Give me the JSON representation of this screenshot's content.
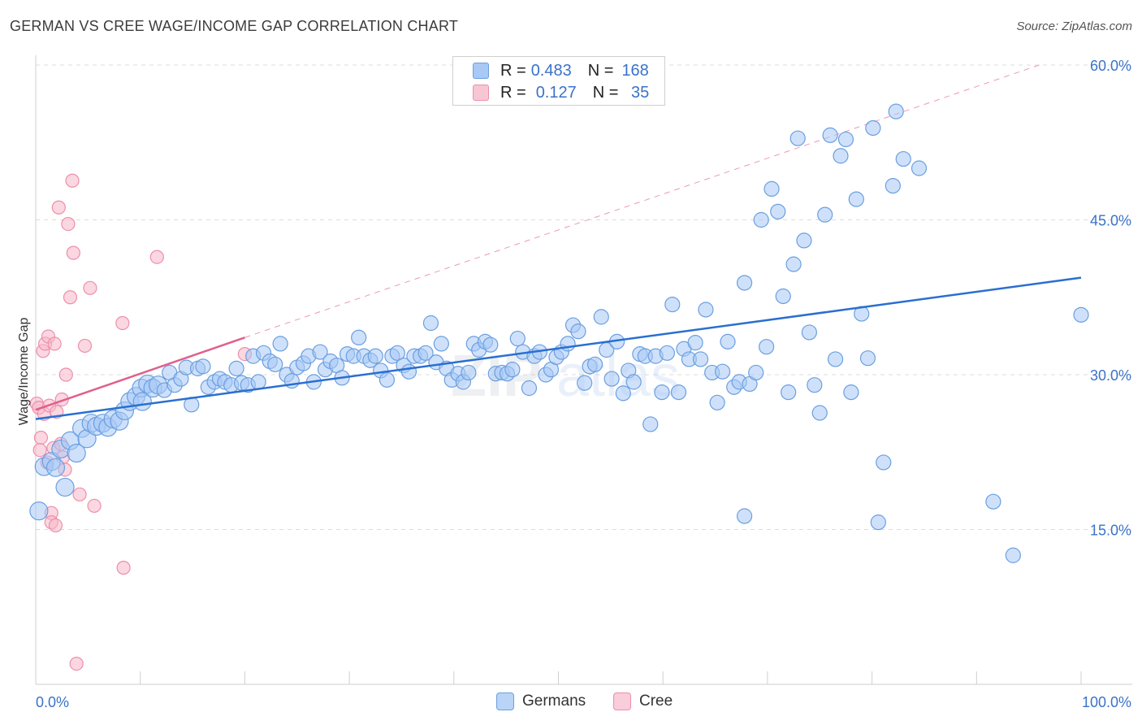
{
  "title": "GERMAN VS CREE WAGE/INCOME GAP CORRELATION CHART",
  "source": "Source: ZipAtlas.com",
  "legend_top": {
    "rows": [
      {
        "r_label": "R =",
        "r_value": "0.483",
        "n_label": "N =",
        "n_value": "168",
        "color": "#a8c8f5"
      },
      {
        "r_label": "R =",
        "r_value": "0.127",
        "n_label": "N =",
        "n_value": " 35",
        "color": "#f7b6c8"
      }
    ]
  },
  "legend_bottom": [
    {
      "label": "Germans",
      "color": "#a8c8f5"
    },
    {
      "label": "Cree",
      "color": "#f7b6c8"
    }
  ],
  "chart_data": {
    "type": "scatter",
    "title": "GERMAN VS CREE WAGE/INCOME GAP CORRELATION CHART",
    "xlabel": "",
    "ylabel": "Wage/Income Gap",
    "xlim": [
      0,
      100
    ],
    "ylim": [
      0,
      60
    ],
    "x_tick_labels": [
      "0.0%",
      "100.0%"
    ],
    "y_ticks": [
      15,
      30,
      45,
      60
    ],
    "y_tick_labels": [
      "15.0%",
      "30.0%",
      "45.0%",
      "60.0%"
    ],
    "grid": true,
    "legend_position": "top-center",
    "colors": {
      "germans_fill": "#a8c8f5",
      "germans_stroke": "#6a9fe0",
      "germans_line": "#2a6fd0",
      "cree_fill": "#f7b6c8",
      "cree_stroke": "#ec8fab",
      "cree_line": "#e0608a",
      "axis_label": "#3a73c9"
    },
    "series": [
      {
        "name": "Germans",
        "r": 0.483,
        "n": 168,
        "trend": {
          "x": [
            0,
            100
          ],
          "y": [
            25.7,
            39.4
          ]
        },
        "points": [
          [
            0.3,
            16.8
          ],
          [
            0.8,
            21.1
          ],
          [
            1.5,
            21.6
          ],
          [
            1.9,
            21.0
          ],
          [
            2.4,
            22.8
          ],
          [
            2.8,
            19.1
          ],
          [
            3.3,
            23.6
          ],
          [
            3.9,
            22.4
          ],
          [
            4.4,
            24.8
          ],
          [
            4.9,
            23.8
          ],
          [
            5.3,
            25.3
          ],
          [
            5.8,
            25.0
          ],
          [
            6.4,
            25.3
          ],
          [
            6.9,
            24.9
          ],
          [
            7.4,
            25.7
          ],
          [
            8.0,
            25.5
          ],
          [
            8.5,
            26.5
          ],
          [
            9.0,
            27.4
          ],
          [
            9.6,
            27.9
          ],
          [
            10.1,
            28.7
          ],
          [
            10.2,
            27.4
          ],
          [
            10.7,
            29.1
          ],
          [
            11.2,
            28.7
          ],
          [
            11.7,
            29.0
          ],
          [
            12.3,
            28.5
          ],
          [
            12.8,
            30.2
          ],
          [
            13.3,
            29.0
          ],
          [
            13.9,
            29.6
          ],
          [
            14.4,
            30.7
          ],
          [
            14.9,
            27.1
          ],
          [
            15.5,
            30.6
          ],
          [
            16.0,
            30.8
          ],
          [
            16.5,
            28.8
          ],
          [
            17.1,
            29.3
          ],
          [
            17.6,
            29.6
          ],
          [
            18.1,
            29.3
          ],
          [
            18.7,
            29.0
          ],
          [
            19.2,
            30.6
          ],
          [
            19.7,
            29.2
          ],
          [
            20.3,
            29.0
          ],
          [
            20.8,
            31.8
          ],
          [
            21.3,
            29.3
          ],
          [
            21.8,
            32.1
          ],
          [
            22.4,
            31.3
          ],
          [
            22.9,
            31.0
          ],
          [
            23.4,
            33.0
          ],
          [
            24.0,
            30.0
          ],
          [
            24.5,
            29.4
          ],
          [
            25.0,
            30.7
          ],
          [
            25.6,
            31.1
          ],
          [
            26.1,
            31.8
          ],
          [
            26.6,
            29.3
          ],
          [
            27.2,
            32.2
          ],
          [
            27.7,
            30.5
          ],
          [
            28.2,
            31.3
          ],
          [
            28.8,
            30.9
          ],
          [
            29.3,
            29.7
          ],
          [
            29.8,
            32.0
          ],
          [
            30.4,
            31.8
          ],
          [
            30.9,
            33.6
          ],
          [
            31.4,
            31.8
          ],
          [
            32.0,
            31.4
          ],
          [
            32.5,
            31.8
          ],
          [
            33.0,
            30.4
          ],
          [
            33.6,
            29.5
          ],
          [
            34.1,
            31.8
          ],
          [
            34.6,
            32.1
          ],
          [
            35.2,
            30.9
          ],
          [
            35.7,
            30.3
          ],
          [
            36.2,
            31.8
          ],
          [
            36.8,
            31.8
          ],
          [
            37.3,
            32.1
          ],
          [
            37.8,
            35.0
          ],
          [
            38.3,
            31.2
          ],
          [
            38.8,
            33.0
          ],
          [
            39.3,
            30.6
          ],
          [
            39.8,
            29.5
          ],
          [
            40.4,
            30.1
          ],
          [
            40.9,
            29.3
          ],
          [
            41.4,
            30.2
          ],
          [
            41.9,
            33.0
          ],
          [
            42.4,
            32.4
          ],
          [
            43.0,
            33.2
          ],
          [
            43.5,
            32.9
          ],
          [
            44.0,
            30.1
          ],
          [
            44.6,
            30.2
          ],
          [
            45.1,
            30.1
          ],
          [
            45.6,
            30.5
          ],
          [
            46.1,
            33.5
          ],
          [
            46.6,
            32.2
          ],
          [
            47.2,
            28.7
          ],
          [
            47.7,
            31.8
          ],
          [
            48.2,
            32.2
          ],
          [
            48.8,
            30.0
          ],
          [
            49.3,
            30.5
          ],
          [
            49.8,
            31.7
          ],
          [
            50.3,
            32.2
          ],
          [
            50.9,
            33.0
          ],
          [
            51.4,
            34.8
          ],
          [
            51.9,
            34.2
          ],
          [
            52.5,
            29.2
          ],
          [
            53.0,
            30.8
          ],
          [
            53.5,
            31.0
          ],
          [
            54.1,
            35.6
          ],
          [
            54.6,
            32.4
          ],
          [
            55.1,
            29.6
          ],
          [
            55.6,
            33.2
          ],
          [
            56.2,
            28.2
          ],
          [
            56.7,
            30.4
          ],
          [
            57.2,
            29.3
          ],
          [
            57.8,
            32.0
          ],
          [
            58.3,
            31.8
          ],
          [
            58.8,
            25.2
          ],
          [
            59.3,
            31.8
          ],
          [
            59.9,
            28.3
          ],
          [
            60.4,
            32.1
          ],
          [
            60.9,
            36.8
          ],
          [
            61.5,
            28.3
          ],
          [
            62.0,
            32.5
          ],
          [
            62.5,
            31.5
          ],
          [
            63.1,
            33.1
          ],
          [
            63.6,
            31.5
          ],
          [
            64.1,
            36.3
          ],
          [
            64.7,
            30.2
          ],
          [
            65.2,
            27.3
          ],
          [
            65.7,
            30.3
          ],
          [
            66.2,
            33.2
          ],
          [
            66.8,
            28.8
          ],
          [
            67.3,
            29.3
          ],
          [
            67.8,
            38.9
          ],
          [
            67.8,
            16.3
          ],
          [
            68.3,
            29.1
          ],
          [
            68.9,
            30.2
          ],
          [
            69.4,
            45.0
          ],
          [
            69.9,
            32.7
          ],
          [
            70.4,
            48.0
          ],
          [
            71.0,
            45.8
          ],
          [
            71.5,
            37.6
          ],
          [
            72.0,
            28.3
          ],
          [
            72.5,
            40.7
          ],
          [
            72.9,
            52.9
          ],
          [
            73.5,
            43.0
          ],
          [
            74.0,
            34.1
          ],
          [
            74.5,
            29.0
          ],
          [
            75.0,
            26.3
          ],
          [
            75.5,
            45.5
          ],
          [
            76.0,
            53.2
          ],
          [
            76.5,
            31.5
          ],
          [
            77.0,
            51.2
          ],
          [
            77.5,
            52.8
          ],
          [
            78.0,
            28.3
          ],
          [
            78.5,
            47.0
          ],
          [
            79.0,
            35.9
          ],
          [
            79.6,
            31.6
          ],
          [
            80.1,
            53.9
          ],
          [
            80.6,
            15.7
          ],
          [
            81.1,
            21.5
          ],
          [
            82.0,
            48.3
          ],
          [
            82.3,
            55.5
          ],
          [
            83.0,
            50.9
          ],
          [
            84.5,
            50.0
          ],
          [
            91.6,
            17.7
          ],
          [
            93.5,
            12.5
          ],
          [
            100.0,
            35.8
          ]
        ]
      },
      {
        "name": "Cree",
        "r": 0.127,
        "n": 35,
        "trend": {
          "x": [
            0,
            20
          ],
          "y": [
            26.6,
            33.6
          ]
        },
        "points": [
          [
            0.1,
            27.2
          ],
          [
            0.3,
            26.8
          ],
          [
            0.5,
            23.9
          ],
          [
            0.7,
            32.3
          ],
          [
            0.8,
            26.2
          ],
          [
            0.9,
            33.0
          ],
          [
            1.1,
            21.5
          ],
          [
            1.2,
            33.7
          ],
          [
            1.3,
            27.0
          ],
          [
            1.5,
            16.6
          ],
          [
            1.5,
            15.7
          ],
          [
            1.7,
            22.9
          ],
          [
            1.8,
            33.0
          ],
          [
            1.9,
            15.4
          ],
          [
            2.0,
            26.4
          ],
          [
            2.2,
            46.2
          ],
          [
            2.5,
            27.6
          ],
          [
            2.6,
            22.0
          ],
          [
            2.8,
            20.8
          ],
          [
            2.9,
            30.0
          ],
          [
            3.1,
            44.6
          ],
          [
            3.3,
            37.5
          ],
          [
            3.5,
            48.8
          ],
          [
            3.6,
            41.8
          ],
          [
            3.9,
            2.0
          ],
          [
            4.2,
            18.4
          ],
          [
            4.7,
            32.8
          ],
          [
            5.2,
            38.4
          ],
          [
            5.6,
            17.3
          ],
          [
            8.3,
            35.0
          ],
          [
            8.4,
            11.3
          ],
          [
            11.6,
            41.4
          ],
          [
            20.0,
            32.0
          ],
          [
            0.4,
            22.7
          ],
          [
            2.4,
            23.3
          ]
        ]
      }
    ],
    "reference_line": {
      "x": [
        20,
        96
      ],
      "y": [
        33.6,
        60.0
      ],
      "style": "dashed"
    }
  }
}
